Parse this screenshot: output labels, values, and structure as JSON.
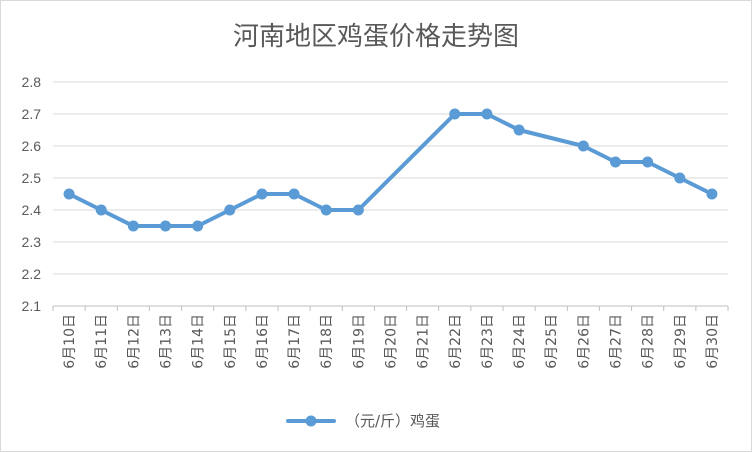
{
  "chart_data": {
    "type": "line",
    "title": "河南地区鸡蛋价格走势图",
    "xlabel": "",
    "ylabel": "",
    "categories": [
      "6月10日",
      "6月11日",
      "6月12日",
      "6月13日",
      "6月14日",
      "6月15日",
      "6月16日",
      "6月17日",
      "6月18日",
      "6月19日",
      "6月20日",
      "6月21日",
      "6月22日",
      "6月23日",
      "6月24日",
      "6月25日",
      "6月26日",
      "6月27日",
      "6月28日",
      "6月29日",
      "6月30日"
    ],
    "series": [
      {
        "name": "（元/斤）鸡蛋",
        "color": "#5b9bd5",
        "values": [
          2.45,
          2.4,
          2.35,
          2.35,
          2.35,
          2.4,
          2.45,
          2.45,
          2.4,
          2.4,
          null,
          null,
          2.7,
          2.7,
          2.65,
          null,
          2.6,
          2.55,
          2.55,
          2.5,
          2.45
        ]
      }
    ],
    "ylim": [
      2.1,
      2.8
    ],
    "yticks": [
      "2.1",
      "2.2",
      "2.3",
      "2.4",
      "2.5",
      "2.6",
      "2.7",
      "2.8"
    ],
    "grid": true,
    "legend": "bottom"
  }
}
